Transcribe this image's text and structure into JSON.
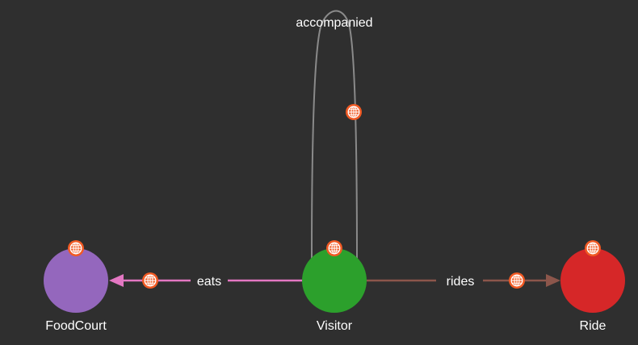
{
  "graph": {
    "nodes": [
      {
        "id": "foodcourt",
        "label": "FoodCourt",
        "color": "#9467bd"
      },
      {
        "id": "visitor",
        "label": "Visitor",
        "color": "#2ca02c"
      },
      {
        "id": "ride",
        "label": "Ride",
        "color": "#d62728"
      }
    ],
    "edges": [
      {
        "id": "eats",
        "label": "eats",
        "from": "visitor",
        "to": "foodcourt",
        "color": "#e377c2"
      },
      {
        "id": "rides",
        "label": "rides",
        "from": "visitor",
        "to": "ride",
        "color": "#8c564b"
      },
      {
        "id": "accompanied",
        "label": "accompanied",
        "from": "visitor",
        "to": "visitor",
        "color": "#8a8a8a"
      }
    ],
    "badge_icon": "globe-icon",
    "badge_color": "#f15a24"
  }
}
